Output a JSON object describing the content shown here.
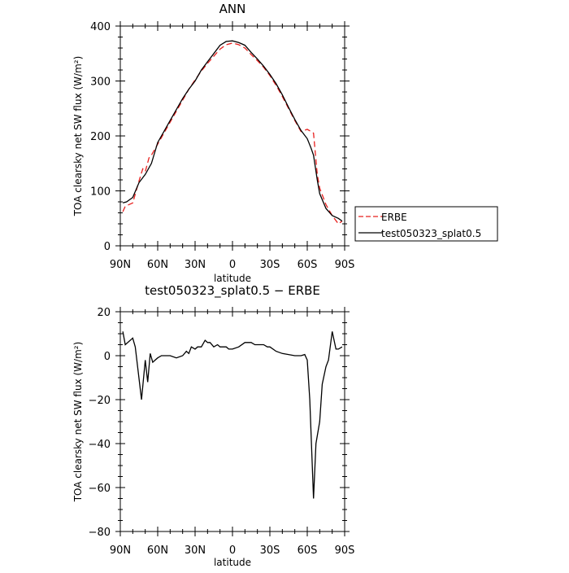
{
  "chart_data": [
    {
      "type": "line",
      "title": "ANN",
      "xlabel": "latitude",
      "ylabel": "TOA clearsky net SW flux (W/m²)",
      "xlim": [
        90,
        -90
      ],
      "ylim": [
        0,
        400
      ],
      "x_ticks": [
        90,
        60,
        30,
        0,
        -30,
        -60,
        -90
      ],
      "x_tick_labels": [
        "90N",
        "60N",
        "30N",
        "0",
        "30S",
        "60S",
        "90S"
      ],
      "y_ticks": [
        0,
        100,
        200,
        300,
        400
      ],
      "y_tick_labels": [
        "0",
        "100",
        "200",
        "300",
        "400"
      ],
      "legend": "outside-right",
      "series": [
        {
          "name": "ERBE",
          "color": "#e8201e",
          "dash": "dashed",
          "x": [
            88,
            86,
            80,
            75,
            72,
            70,
            67,
            65,
            60,
            55,
            50,
            45,
            40,
            35,
            30,
            25,
            20,
            15,
            10,
            5,
            0,
            -5,
            -10,
            -15,
            -20,
            -25,
            -30,
            -35,
            -40,
            -45,
            -50,
            -55,
            -60,
            -63,
            -65,
            -68,
            -70,
            -75,
            -80,
            -85,
            -88
          ],
          "values": [
            62,
            72,
            78,
            118,
            140,
            135,
            160,
            165,
            185,
            205,
            225,
            245,
            265,
            285,
            302,
            318,
            332,
            345,
            358,
            366,
            369,
            366,
            360,
            348,
            337,
            325,
            310,
            292,
            272,
            250,
            228,
            208,
            212,
            208,
            205,
            130,
            105,
            75,
            55,
            40,
            45
          ]
        },
        {
          "name": "test050323_splat0.5",
          "color": "#000000",
          "dash": "solid",
          "x": [
            88,
            85,
            80,
            75,
            70,
            65,
            60,
            55,
            50,
            45,
            40,
            35,
            30,
            25,
            20,
            15,
            10,
            5,
            0,
            -5,
            -10,
            -15,
            -20,
            -25,
            -30,
            -35,
            -40,
            -45,
            -50,
            -55,
            -60,
            -63,
            -65,
            -68,
            -70,
            -75,
            -80,
            -85,
            -88
          ],
          "values": [
            78,
            80,
            88,
            115,
            130,
            150,
            188,
            208,
            228,
            248,
            268,
            285,
            300,
            320,
            335,
            350,
            365,
            372,
            373,
            370,
            365,
            352,
            340,
            327,
            312,
            295,
            275,
            252,
            230,
            210,
            195,
            178,
            165,
            120,
            95,
            68,
            55,
            50,
            45
          ]
        }
      ]
    },
    {
      "type": "line",
      "title": "test050323_splat0.5 − ERBE",
      "xlabel": "latitude",
      "ylabel": "TOA clearsky net SW flux (W/m²)",
      "xlim": [
        90,
        -90
      ],
      "ylim": [
        -80,
        20
      ],
      "x_ticks": [
        90,
        60,
        30,
        0,
        -30,
        -60,
        -90
      ],
      "x_tick_labels": [
        "90N",
        "60N",
        "30N",
        "0",
        "30S",
        "60S",
        "90S"
      ],
      "y_ticks": [
        20,
        0,
        -20,
        -40,
        -60,
        -80
      ],
      "y_tick_labels": [
        "20",
        "0",
        "−20",
        "−40",
        "−60",
        "−80"
      ],
      "series": [
        {
          "color": "#000000",
          "x": [
            88,
            86,
            80,
            78,
            73,
            70,
            68,
            66,
            64,
            62,
            60,
            57,
            55,
            50,
            45,
            40,
            37,
            35,
            33,
            30,
            28,
            25,
            22,
            20,
            18,
            15,
            12,
            10,
            8,
            5,
            3,
            0,
            -5,
            -10,
            -12,
            -15,
            -18,
            -20,
            -25,
            -28,
            -30,
            -35,
            -40,
            -45,
            -50,
            -55,
            -58,
            -60,
            -62,
            -65,
            -67,
            -70,
            -72,
            -75,
            -77,
            -80,
            -83,
            -85,
            -88
          ],
          "values": [
            11,
            5,
            8,
            4,
            -20,
            -2,
            -12,
            1,
            -3,
            -2,
            -1,
            0,
            0,
            0,
            -1,
            0,
            2,
            1,
            4,
            3,
            4,
            4,
            7,
            6,
            6,
            4,
            5,
            4,
            4,
            4,
            3,
            3,
            4,
            6,
            6,
            6,
            5,
            5,
            5,
            4,
            4,
            2,
            1,
            0.5,
            0,
            0,
            0.5,
            -2,
            -20,
            -65,
            -40,
            -30,
            -13,
            -5,
            -2,
            11,
            3,
            3,
            4
          ]
        }
      ]
    }
  ]
}
